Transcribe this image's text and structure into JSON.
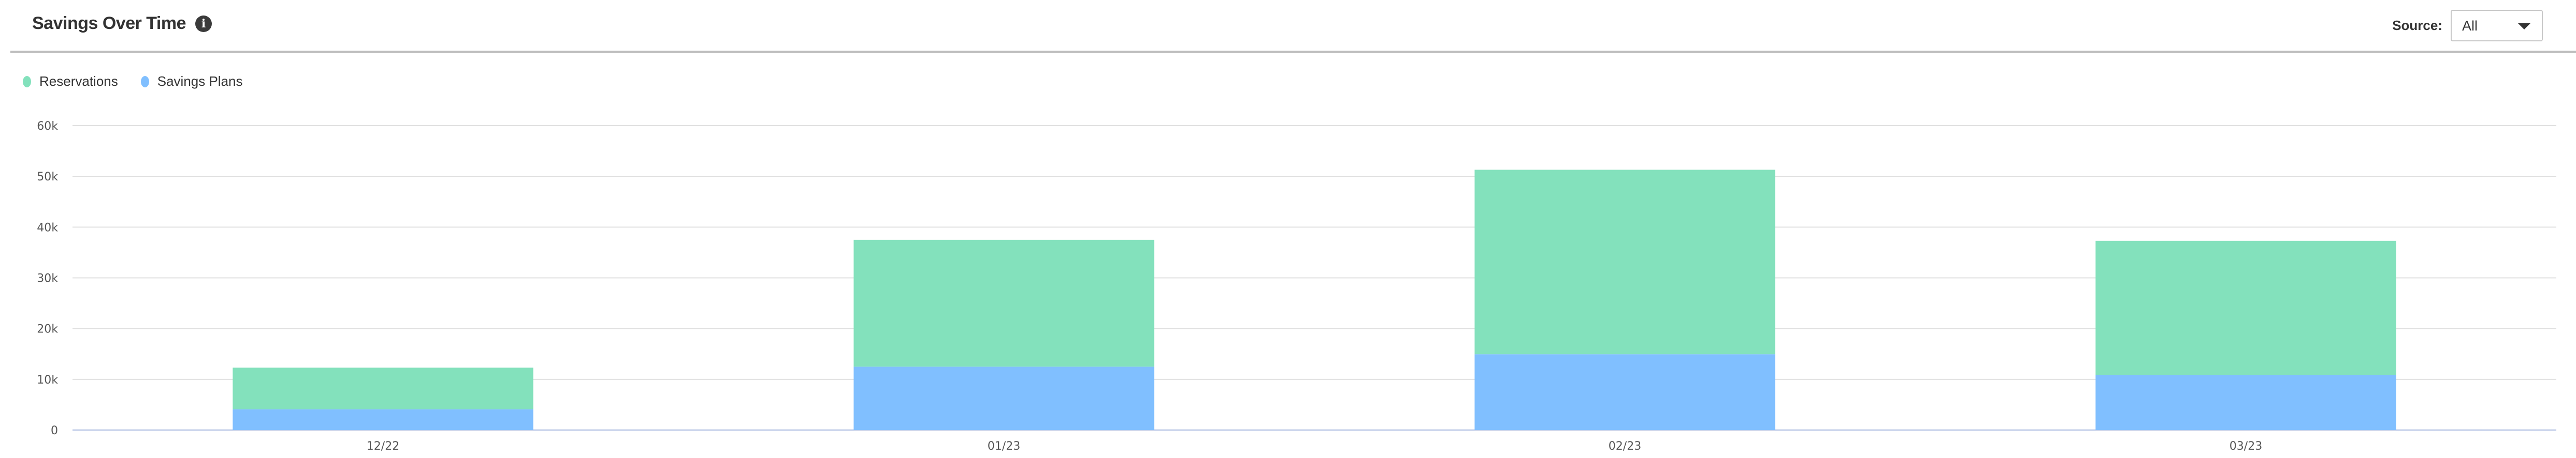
{
  "header": {
    "title": "Savings Over Time",
    "info_icon": "info-circle-icon",
    "source_label": "Source:",
    "source_value": "All"
  },
  "chart_data": {
    "type": "bar",
    "stacked": true,
    "categories": [
      "12/22",
      "01/23",
      "02/23",
      "03/23"
    ],
    "series": [
      {
        "name": "Savings Plans",
        "color": "#80bfff",
        "values": [
          4100,
          12500,
          14950,
          10900
        ]
      },
      {
        "name": "Reservations",
        "color": "#83e1bc",
        "values": [
          8200,
          25000,
          36350,
          26400
        ]
      }
    ],
    "legend": [
      {
        "name": "Reservations",
        "color": "#83e1bc"
      },
      {
        "name": "Savings Plans",
        "color": "#80bfff"
      }
    ],
    "legend_position": "top-left",
    "ylim": [
      0,
      60000
    ],
    "yticks": [
      {
        "value": 0,
        "label": "0"
      },
      {
        "value": 10000,
        "label": "10k"
      },
      {
        "value": 20000,
        "label": "20k"
      },
      {
        "value": 30000,
        "label": "30k"
      },
      {
        "value": 40000,
        "label": "40k"
      },
      {
        "value": 50000,
        "label": "50k"
      },
      {
        "value": 60000,
        "label": "60k"
      }
    ],
    "grid": true,
    "title": "",
    "xlabel": "",
    "ylabel": ""
  }
}
